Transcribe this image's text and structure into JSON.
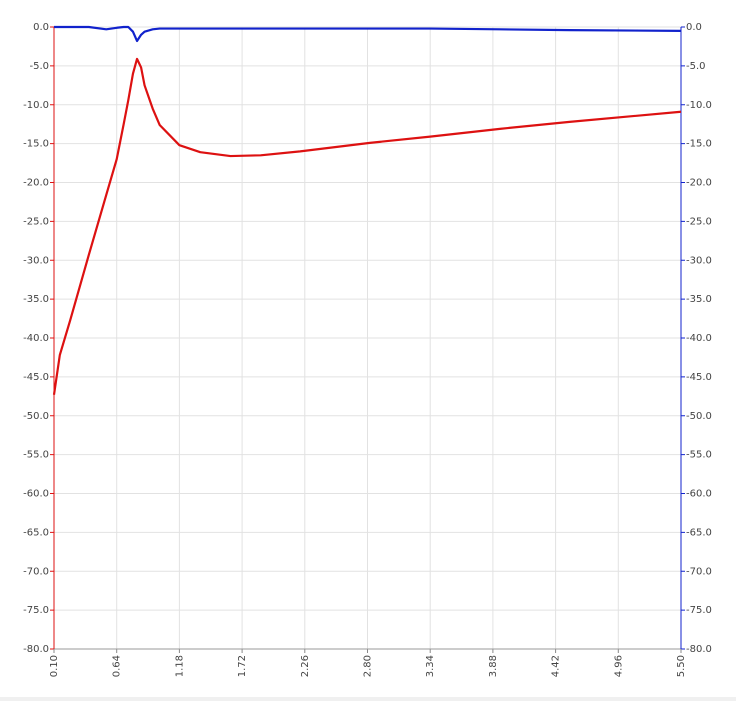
{
  "chart_data": {
    "type": "line",
    "x": [
      0.1,
      0.15,
      0.24,
      0.4,
      0.55,
      0.64,
      0.7,
      0.74,
      0.78,
      0.815,
      0.85,
      0.88,
      0.95,
      1.01,
      1.18,
      1.36,
      1.62,
      1.88,
      2.22,
      2.82,
      3.34,
      3.94,
      4.54,
      5.5
    ],
    "series": [
      {
        "color": "#dd1111",
        "values": [
          -47.3,
          -42.2,
          -37.7,
          -29.3,
          -21.6,
          -17,
          -12.5,
          -9.4,
          -6,
          -4.1,
          -5.2,
          -7.5,
          -10.5,
          -12.6,
          -15.2,
          -16.1,
          -16.6,
          -16.5,
          -16.0,
          -14.9,
          -14.1,
          -13.1,
          -12.2,
          -10.9
        ]
      },
      {
        "color": "#1122cc",
        "axis": "y2",
        "values": [
          0,
          0,
          0,
          0,
          -0.3,
          -0.1,
          0,
          0,
          -0.6,
          -1.8,
          -1.0,
          -0.6,
          -0.3,
          -0.2,
          -0.2,
          -0.2,
          -0.2,
          -0.2,
          -0.2,
          -0.2,
          -0.2,
          -0.3,
          -0.4,
          -0.5
        ]
      }
    ],
    "xlim": [
      0.1,
      5.5
    ],
    "xticks": [
      {
        "value": 0.1,
        "label": "0.10"
      },
      0.64,
      1.18,
      1.72,
      2.26,
      {
        "value": 2.8,
        "label": "2.80"
      },
      3.34,
      3.88,
      4.42,
      4.96,
      {
        "value": 5.5,
        "label": "5.50"
      }
    ],
    "ylim": [
      -80,
      0
    ],
    "yticks": [
      {
        "value": 0,
        "label": "0.0"
      },
      {
        "value": -5,
        "label": "-5.0"
      },
      {
        "value": -10,
        "label": "-10.0"
      },
      {
        "value": -15,
        "label": "-15.0"
      },
      {
        "value": -20,
        "label": "-20.0"
      },
      {
        "value": -25,
        "label": "-25.0"
      },
      {
        "value": -30,
        "label": "-30.0"
      },
      {
        "value": -35,
        "label": "-35.0"
      },
      {
        "value": -40,
        "label": "-40.0"
      },
      {
        "value": -45,
        "label": "-45.0"
      },
      {
        "value": -50,
        "label": "-50.0"
      },
      {
        "value": -55,
        "label": "-55.0"
      },
      {
        "value": -60,
        "label": "-60.0"
      },
      {
        "value": -65,
        "label": "-65.0"
      },
      {
        "value": -70,
        "label": "-70.0"
      },
      {
        "value": -75,
        "label": "-75.0"
      },
      {
        "value": -80,
        "label": "-80.0"
      }
    ],
    "y2lim": [
      -80,
      0
    ],
    "y2ticks": [
      {
        "value": 0,
        "label": "0.0"
      },
      {
        "value": -5,
        "label": "-5.0"
      },
      {
        "value": -10,
        "label": "-10.0"
      },
      {
        "value": -15,
        "label": "-15.0"
      },
      {
        "value": -20,
        "label": "-20.0"
      },
      {
        "value": -25,
        "label": "-25.0"
      },
      {
        "value": -30,
        "label": "-30.0"
      },
      {
        "value": -35,
        "label": "-35.0"
      },
      {
        "value": -40,
        "label": "-40.0"
      },
      {
        "value": -45,
        "label": "-45.0"
      },
      {
        "value": -50,
        "label": "-50.0"
      },
      {
        "value": -55,
        "label": "-55.0"
      },
      {
        "value": -60,
        "label": "-60.0"
      },
      {
        "value": -65,
        "label": "-65.0"
      },
      {
        "value": -70,
        "label": "-70.0"
      },
      {
        "value": -75,
        "label": "-75.0"
      },
      {
        "value": -80,
        "label": "-80.0"
      }
    ],
    "grid": true
  }
}
